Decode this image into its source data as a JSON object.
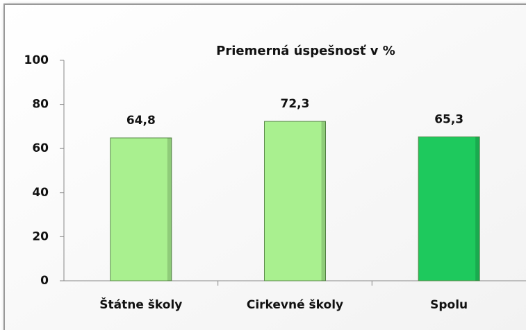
{
  "chart_data": {
    "type": "bar",
    "title": "Priemerná úspešnosť v %",
    "categories": [
      "Štátne školy",
      "Cirkevné školy",
      "Spolu"
    ],
    "values": [
      64.8,
      72.3,
      65.3
    ],
    "value_labels": [
      "64,8",
      "72,3",
      "65,3"
    ],
    "colors": [
      "#a9f08f",
      "#a9f08f",
      "#1ec95d"
    ],
    "ylim": [
      0,
      100
    ],
    "yticks": [
      0,
      20,
      40,
      60,
      80,
      100
    ]
  }
}
